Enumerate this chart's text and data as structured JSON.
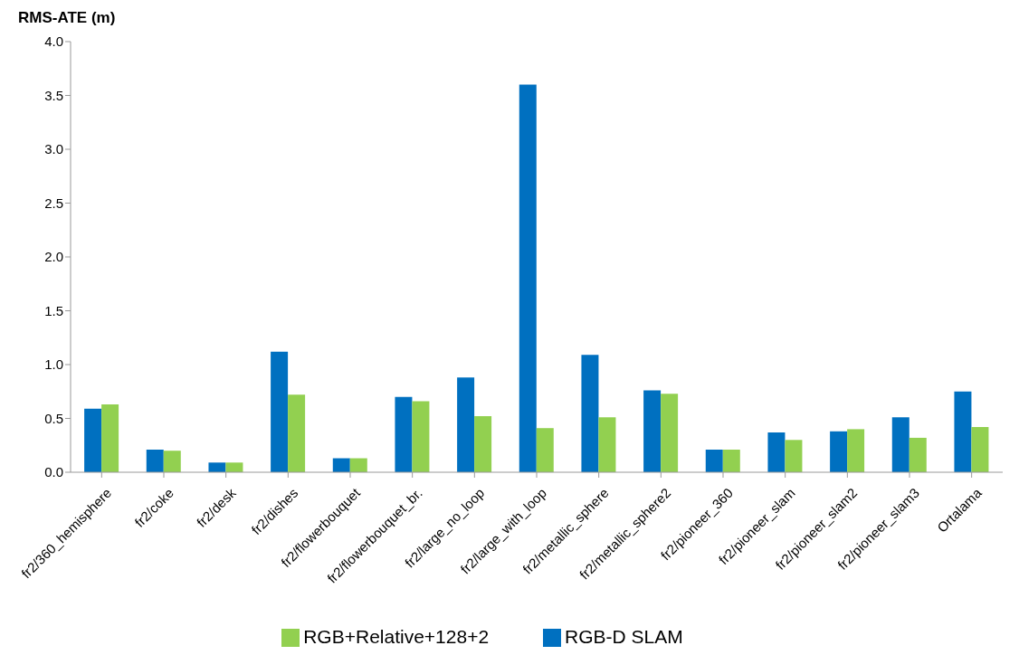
{
  "chart_data": {
    "type": "bar",
    "ylabel": "RMS-ATE (m)",
    "categories": [
      "fr2/360_hemisphere",
      "fr2/coke",
      "fr2/desk",
      "fr2/dishes",
      "fr2/flowerbouquet",
      "fr2/flowerbouquet_br.",
      "fr2/large_no_loop",
      "fr2/large_with_loop",
      "fr2/metallic_sphere",
      "fr2/metallic_sphere2",
      "fr2/pioneer_360",
      "fr2/pioneer_slam",
      "fr2/pioneer_slam2",
      "fr2/pioneer_slam3",
      "Ortalama"
    ],
    "series": [
      {
        "name": "RGB-D SLAM",
        "color": "#0070c0",
        "values": [
          0.59,
          0.21,
          0.09,
          1.12,
          0.13,
          0.7,
          0.88,
          3.6,
          1.09,
          0.76,
          0.21,
          0.37,
          0.38,
          0.51,
          0.75
        ]
      },
      {
        "name": "RGB+Relative+128+2",
        "color": "#92d050",
        "values": [
          0.63,
          0.2,
          0.09,
          0.72,
          0.13,
          0.66,
          0.52,
          0.41,
          0.51,
          0.73,
          0.21,
          0.3,
          0.4,
          0.32,
          0.42
        ]
      }
    ],
    "ylim": [
      0,
      4
    ],
    "yticks": [
      {
        "value": 0,
        "label": "0.0"
      },
      {
        "value": 0.5,
        "label": "0.5"
      },
      {
        "value": 1,
        "label": "1.0"
      },
      {
        "value": 1.5,
        "label": "1.5"
      },
      {
        "value": 2,
        "label": "2.0"
      },
      {
        "value": 2.5,
        "label": "2.5"
      },
      {
        "value": 3,
        "label": "3.0"
      },
      {
        "value": 3.5,
        "label": "3.5"
      },
      {
        "value": 4,
        "label": "4.0"
      }
    ],
    "grid": false,
    "legend": "bottom"
  }
}
